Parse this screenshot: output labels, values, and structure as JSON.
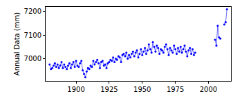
{
  "chart_data": {
    "type": "line",
    "marker": "circle",
    "color": "#0000ff",
    "y_label": "Annual Data (mm)",
    "x": [
      1880,
      1881,
      1882,
      1883,
      1884,
      1885,
      1886,
      1887,
      1888,
      1889,
      1890,
      1891,
      1892,
      1893,
      1894,
      1895,
      1896,
      1897,
      1898,
      1899,
      1900,
      1901,
      1902,
      1903,
      1904,
      1905,
      1906,
      1907,
      1908,
      1909,
      1910,
      1911,
      1912,
      1913,
      1914,
      1915,
      1916,
      1917,
      1918,
      1919,
      1920,
      1921,
      1922,
      1923,
      1924,
      1925,
      1926,
      1927,
      1928,
      1929,
      1930,
      1931,
      1932,
      1933,
      1934,
      1935,
      1936,
      1937,
      1938,
      1939,
      1940,
      1941,
      1942,
      1943,
      1944,
      1945,
      1946,
      1947,
      1948,
      1949,
      1950,
      1951,
      1952,
      1953,
      1954,
      1955,
      1956,
      1957,
      1958,
      1959,
      1960,
      1961,
      1962,
      1963,
      1964,
      1965,
      1966,
      1967,
      1968,
      1969,
      1970,
      1971,
      1972,
      1973,
      1974,
      1975,
      1976,
      1977,
      1978,
      1979,
      1980,
      1981,
      1982,
      1983,
      1984,
      1985,
      1986,
      1987,
      1988,
      1989,
      1990,
      1991,
      1992,
      1993,
      1994,
      1995,
      1996,
      1997,
      1998,
      1999,
      2000,
      2001,
      2002,
      2003,
      2004,
      2005,
      2006,
      2007,
      2008,
      2009,
      2010,
      2011,
      2012,
      2013,
      2014
    ],
    "values": [
      6975,
      6955,
      6960,
      6970,
      6980,
      6965,
      6975,
      6960,
      6970,
      6985,
      6960,
      6975,
      6965,
      6955,
      6970,
      6980,
      6960,
      6975,
      6985,
      6965,
      6990,
      6970,
      6965,
      6980,
      6990,
      6950,
      6935,
      6920,
      6945,
      6960,
      6955,
      6970,
      6965,
      6990,
      6975,
      6985,
      6995,
      6980,
      6960,
      6985,
      6990,
      6970,
      6975,
      6960,
      6980,
      6985,
      6995,
      6990,
      7005,
      6985,
      7000,
      6995,
      7010,
      7005,
      6985,
      7015,
      7020,
      7010,
      7025,
      7000,
      7015,
      7005,
      7020,
      7030,
      7010,
      7025,
      7035,
      7005,
      7020,
      7040,
      7015,
      7030,
      7045,
      7020,
      7035,
      7060,
      7040,
      7025,
      7070,
      7050,
      7030,
      7055,
      7045,
      7020,
      7040,
      7035,
      7025,
      7050,
      7060,
      7040,
      7015,
      7045,
      7035,
      7025,
      7055,
      7040,
      7020,
      7045,
      7030,
      7050,
      7025,
      7040,
      7055,
      7030,
      7010,
      7035,
      7045,
      7020,
      7040,
      7015,
      7025,
      null,
      null,
      null,
      null,
      null,
      null,
      null,
      null,
      null,
      null,
      null,
      null,
      null,
      null,
      7080,
      7055,
      7140,
      7090,
      7085,
      null,
      null,
      7145,
      7155,
      7210
    ],
    "xlim": [
      1877,
      2017
    ],
    "xticks": [
      1900,
      1925,
      1950,
      1975,
      2000
    ],
    "ylim": [
      6905,
      7220
    ],
    "yticks": [
      7000,
      7100,
      7200
    ],
    "grid": false
  }
}
